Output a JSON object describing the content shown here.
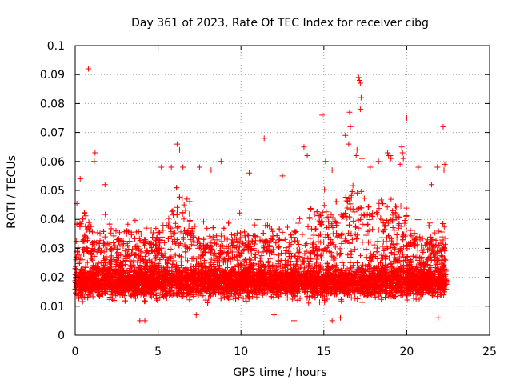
{
  "chart_data": {
    "type": "scatter",
    "title": "Day 361 of 2023, Rate Of TEC Index for receiver cibg",
    "xlabel": "GPS time / hours",
    "ylabel": "ROTI / TECUs",
    "xlim": [
      0,
      25
    ],
    "ylim": [
      0,
      0.1
    ],
    "grid": true,
    "marker": "+",
    "marker_color": "#ff0000",
    "x_ticks": [
      "0",
      "5",
      "10",
      "15",
      "20",
      "25"
    ],
    "y_ticks": [
      "0",
      "0.01",
      "0.02",
      "0.03",
      "0.04",
      "0.05",
      "0.06",
      "0.07",
      "0.08",
      "0.09",
      "0.1"
    ],
    "x_data_range": [
      0,
      22.4
    ],
    "y_data_range": [
      0.005,
      0.092
    ],
    "points": [
      [
        0.8,
        0.092
      ],
      [
        1.2,
        0.063
      ],
      [
        1.15,
        0.06
      ],
      [
        0.3,
        0.054
      ],
      [
        1.8,
        0.052
      ],
      [
        6.15,
        0.066
      ],
      [
        6.3,
        0.064
      ],
      [
        6.5,
        0.058
      ],
      [
        5.2,
        0.058
      ],
      [
        5.8,
        0.058
      ],
      [
        7.5,
        0.058
      ],
      [
        8.2,
        0.057
      ],
      [
        8.8,
        0.06
      ],
      [
        10.5,
        0.056
      ],
      [
        11.4,
        0.068
      ],
      [
        12.5,
        0.055
      ],
      [
        13.8,
        0.065
      ],
      [
        14.0,
        0.062
      ],
      [
        14.9,
        0.076
      ],
      [
        15.1,
        0.06
      ],
      [
        15.5,
        0.057
      ],
      [
        16.3,
        0.069
      ],
      [
        16.5,
        0.066
      ],
      [
        16.6,
        0.072
      ],
      [
        16.55,
        0.077
      ],
      [
        17.1,
        0.089
      ],
      [
        17.15,
        0.088
      ],
      [
        17.2,
        0.087
      ],
      [
        17.25,
        0.082
      ],
      [
        17.2,
        0.078
      ],
      [
        17.0,
        0.064
      ],
      [
        16.95,
        0.062
      ],
      [
        17.3,
        0.061
      ],
      [
        17.8,
        0.058
      ],
      [
        18.3,
        0.06
      ],
      [
        18.85,
        0.063
      ],
      [
        18.9,
        0.062
      ],
      [
        19.0,
        0.062
      ],
      [
        19.05,
        0.061
      ],
      [
        19.7,
        0.065
      ],
      [
        19.75,
        0.063
      ],
      [
        19.8,
        0.061
      ],
      [
        19.6,
        0.059
      ],
      [
        20.0,
        0.075
      ],
      [
        20.7,
        0.058
      ],
      [
        21.5,
        0.052
      ],
      [
        21.85,
        0.058
      ],
      [
        22.2,
        0.072
      ],
      [
        22.3,
        0.059
      ],
      [
        22.25,
        0.057
      ],
      [
        3.9,
        0.005
      ],
      [
        4.2,
        0.005
      ],
      [
        15.5,
        0.005
      ],
      [
        16.0,
        0.006
      ],
      [
        21.9,
        0.006
      ],
      [
        13.2,
        0.005
      ],
      [
        7.3,
        0.007
      ],
      [
        12.0,
        0.007
      ]
    ]
  }
}
